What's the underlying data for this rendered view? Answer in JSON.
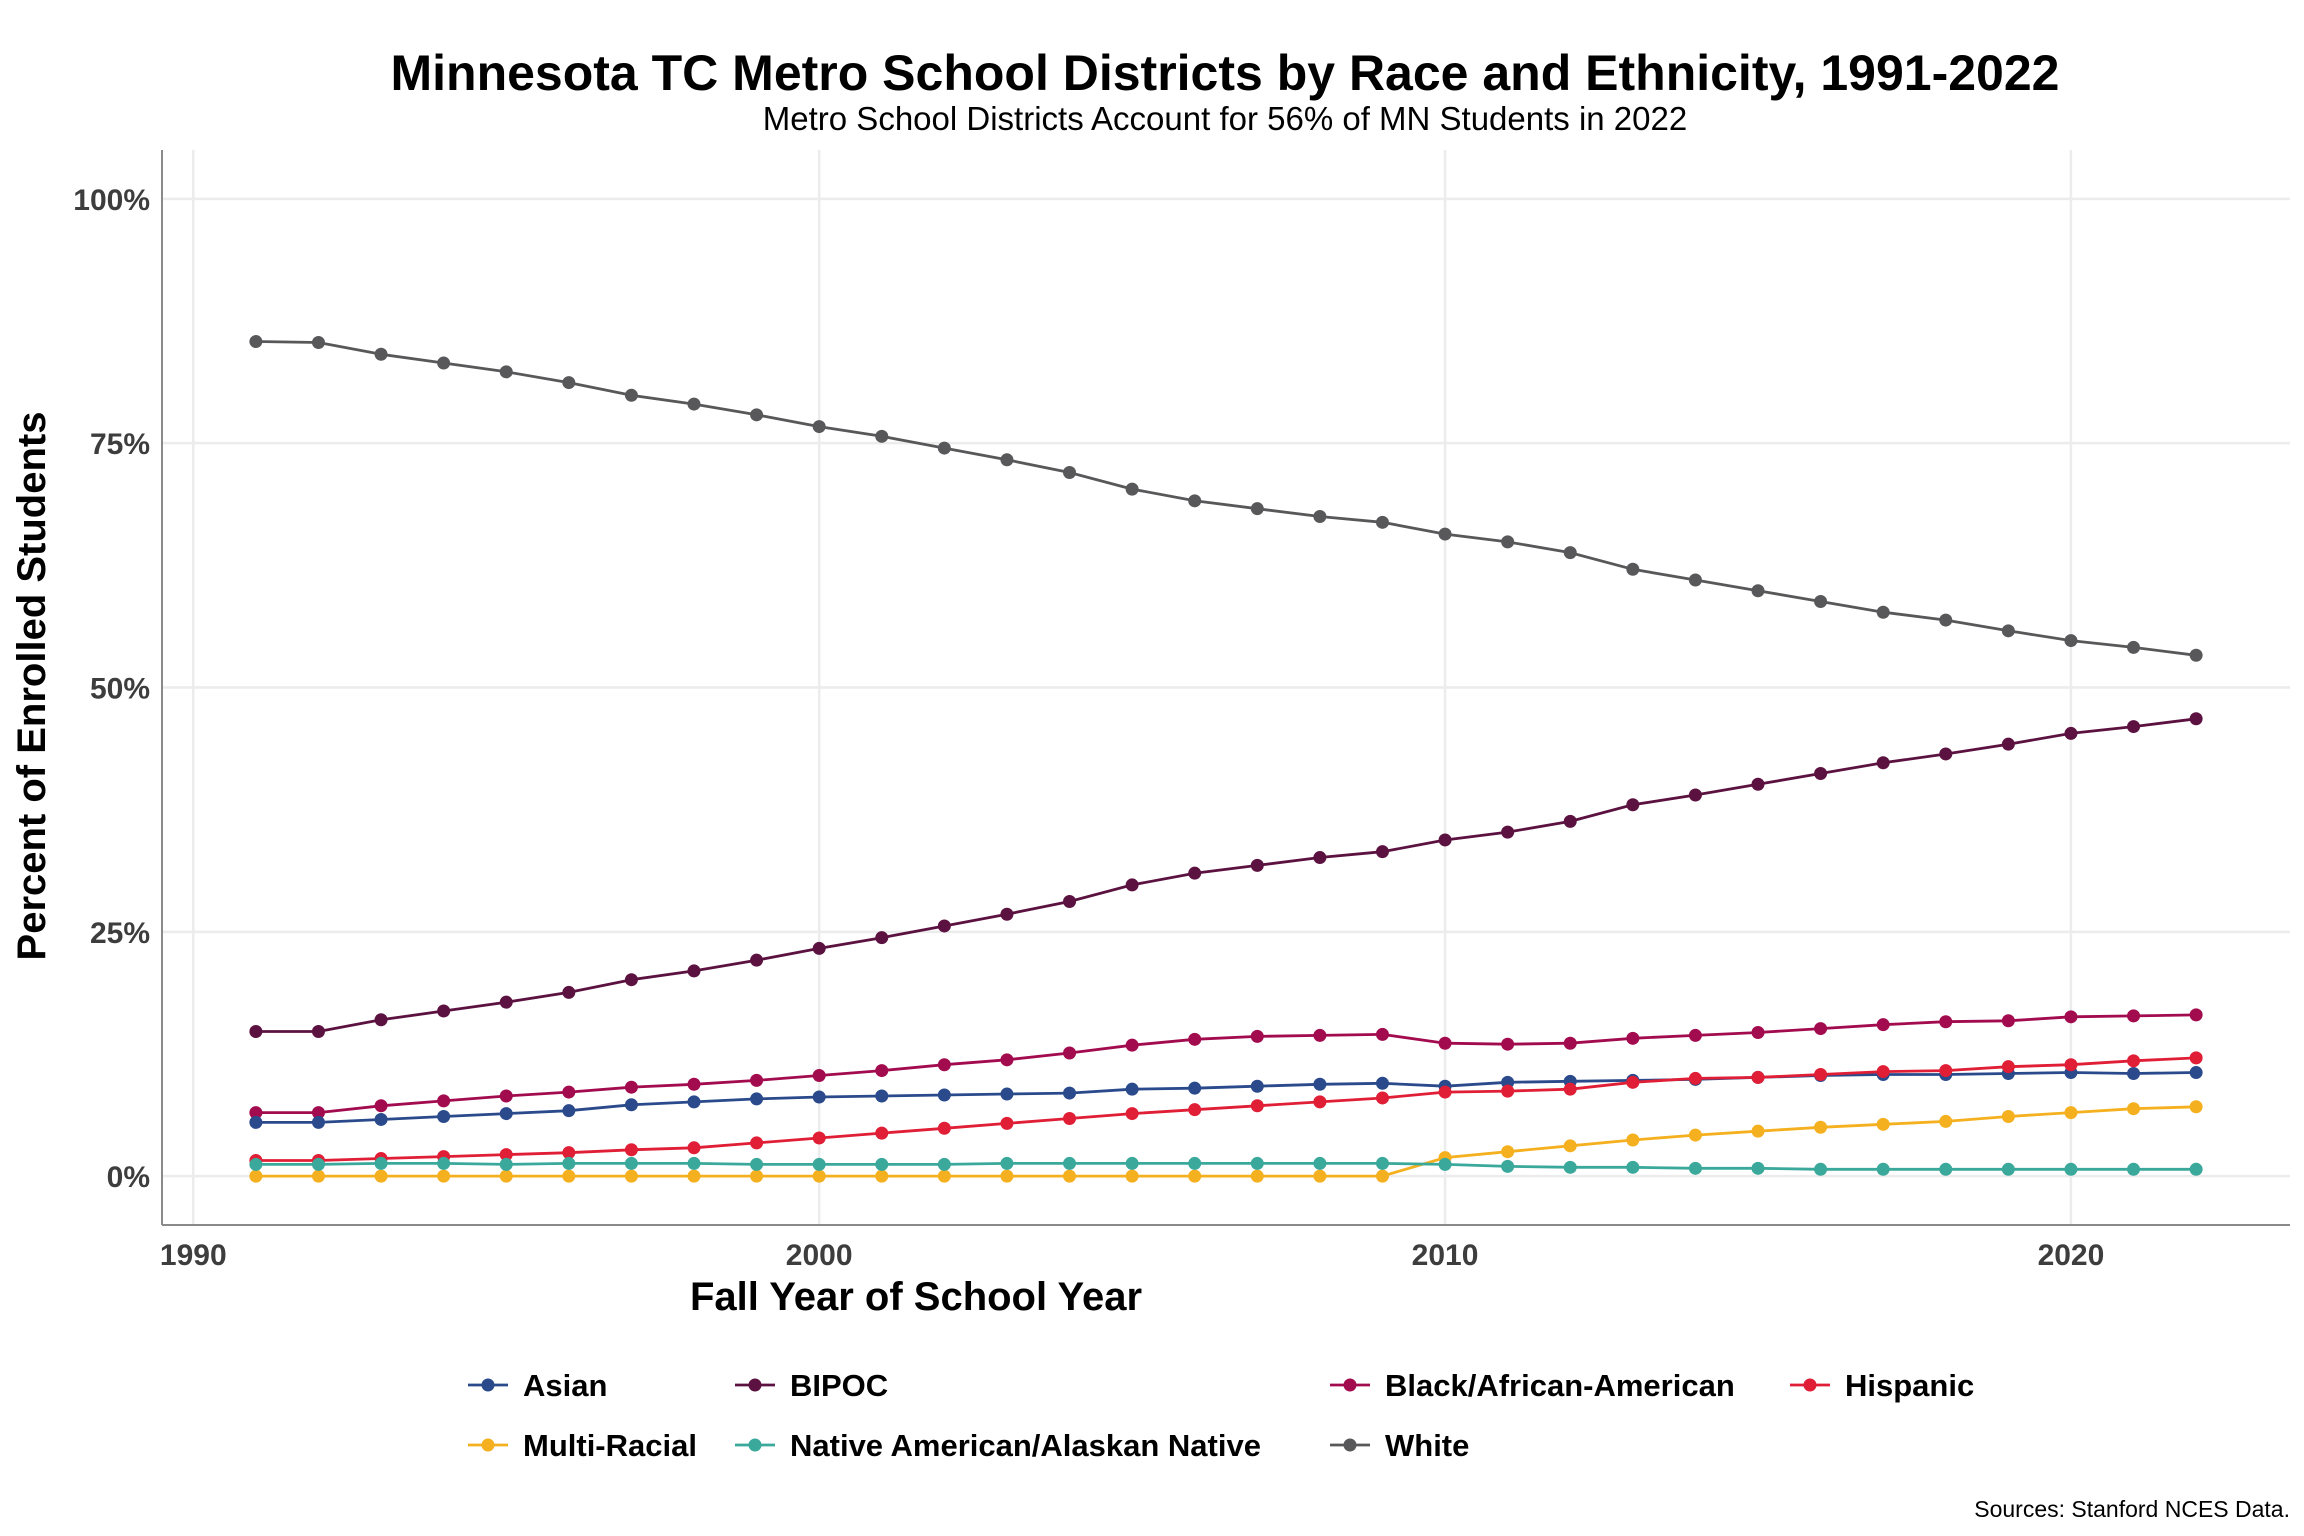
{
  "chart_data": {
    "type": "line",
    "title": "Minnesota TC Metro School Districts by Race and Ethnicity, 1991-2022",
    "subtitle": "Metro School Districts Account for 56% of MN Students in 2022",
    "xlabel": "Fall Year of School Year",
    "ylabel": "Percent of Enrolled Students",
    "caption": "Sources: Stanford NCES Data.",
    "xlim": [
      1989.5,
      2023.5
    ],
    "ylim": [
      -5,
      105
    ],
    "x_ticks": [
      1990,
      2000,
      2010,
      2020
    ],
    "x_tick_labels": [
      "1990",
      "2000",
      "2010",
      "2020"
    ],
    "y_ticks": [
      0,
      25,
      50,
      75,
      100
    ],
    "y_tick_labels": [
      "0%",
      "25%",
      "50%",
      "75%",
      "100%"
    ],
    "grid": true,
    "legend_position": "bottom",
    "x": [
      1991,
      1992,
      1993,
      1994,
      1995,
      1996,
      1997,
      1998,
      1999,
      2000,
      2001,
      2002,
      2003,
      2004,
      2005,
      2006,
      2007,
      2008,
      2009,
      2010,
      2011,
      2012,
      2013,
      2014,
      2015,
      2016,
      2017,
      2018,
      2019,
      2020,
      2021,
      2022
    ],
    "series": [
      {
        "name": "White",
        "color": "#58585a",
        "values": [
          85.4,
          85.3,
          84.1,
          83.2,
          82.3,
          81.2,
          79.9,
          79.0,
          77.9,
          76.7,
          75.7,
          74.5,
          73.3,
          72.0,
          70.3,
          69.1,
          68.3,
          67.5,
          66.9,
          65.7,
          64.9,
          63.8,
          62.1,
          61.0,
          59.9,
          58.8,
          57.7,
          56.9,
          55.8,
          54.8,
          54.1,
          53.3
        ]
      },
      {
        "name": "BIPOC",
        "color": "#5c1240",
        "values": [
          14.8,
          14.8,
          16.0,
          16.9,
          17.8,
          18.8,
          20.1,
          21.0,
          22.1,
          23.3,
          24.4,
          25.6,
          26.8,
          28.1,
          29.8,
          31.0,
          31.8,
          32.6,
          33.2,
          34.4,
          35.2,
          36.3,
          38.0,
          39.0,
          40.1,
          41.2,
          42.3,
          43.2,
          44.2,
          45.3,
          46.0,
          46.8
        ]
      },
      {
        "name": "Black/African-American",
        "color": "#a30b4f",
        "values": [
          6.5,
          6.5,
          7.2,
          7.7,
          8.2,
          8.6,
          9.1,
          9.4,
          9.8,
          10.3,
          10.8,
          11.4,
          11.9,
          12.6,
          13.4,
          14.0,
          14.3,
          14.4,
          14.5,
          13.6,
          13.5,
          13.6,
          14.1,
          14.4,
          14.7,
          15.1,
          15.5,
          15.8,
          15.9,
          16.3,
          16.4,
          16.5
        ]
      },
      {
        "name": "Asian",
        "color": "#2a4a8c",
        "values": [
          5.5,
          5.5,
          5.8,
          6.1,
          6.4,
          6.7,
          7.3,
          7.6,
          7.9,
          8.1,
          8.2,
          8.3,
          8.4,
          8.5,
          8.9,
          9.0,
          9.2,
          9.4,
          9.5,
          9.2,
          9.6,
          9.7,
          9.8,
          9.9,
          10.1,
          10.3,
          10.4,
          10.4,
          10.5,
          10.6,
          10.5,
          10.6
        ]
      },
      {
        "name": "Hispanic",
        "color": "#e01e36",
        "values": [
          1.6,
          1.6,
          1.8,
          2.0,
          2.2,
          2.4,
          2.7,
          2.9,
          3.4,
          3.9,
          4.4,
          4.9,
          5.4,
          5.9,
          6.4,
          6.8,
          7.2,
          7.6,
          8.0,
          8.6,
          8.7,
          8.9,
          9.6,
          10.0,
          10.1,
          10.4,
          10.7,
          10.8,
          11.2,
          11.4,
          11.8,
          12.1
        ]
      },
      {
        "name": "Multi-Racial",
        "color": "#f5b01f",
        "values": [
          0,
          0,
          0,
          0,
          0,
          0,
          0,
          0,
          0,
          0,
          0,
          0,
          0,
          0,
          0,
          0,
          0,
          0,
          0,
          1.9,
          2.5,
          3.1,
          3.7,
          4.2,
          4.6,
          5.0,
          5.3,
          5.6,
          6.1,
          6.5,
          6.9,
          7.1
        ]
      },
      {
        "name": "Native American/Alaskan Native",
        "color": "#3aa89a",
        "values": [
          1.2,
          1.2,
          1.3,
          1.3,
          1.2,
          1.3,
          1.3,
          1.3,
          1.2,
          1.2,
          1.2,
          1.2,
          1.3,
          1.3,
          1.3,
          1.3,
          1.3,
          1.3,
          1.3,
          1.2,
          1.0,
          0.9,
          0.9,
          0.8,
          0.8,
          0.7,
          0.7,
          0.7,
          0.7,
          0.7,
          0.7,
          0.7
        ]
      }
    ],
    "legend_order": [
      "Asian",
      "BIPOC",
      "Black/African-American",
      "Hispanic",
      "Multi-Racial",
      "Native American/Alaskan Native",
      "White"
    ]
  }
}
